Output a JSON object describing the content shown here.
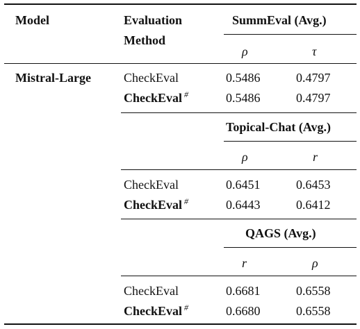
{
  "header": {
    "model": "Model",
    "method_line1": "Evaluation",
    "method_line2": "Method"
  },
  "model_name": "Mistral-Large",
  "sections": [
    {
      "dataset": "SummEval (Avg.)",
      "metric1": "ρ",
      "metric2": "τ",
      "rows": [
        {
          "method": "CheckEval",
          "mark": "",
          "v1": "0.5486",
          "v2": "0.4797"
        },
        {
          "method": "CheckEval",
          "mark": "#",
          "v1": "0.5486",
          "v2": "0.4797"
        }
      ]
    },
    {
      "dataset": "Topical-Chat (Avg.)",
      "metric1": "ρ",
      "metric2": "r",
      "rows": [
        {
          "method": "CheckEval",
          "mark": "",
          "v1": "0.6451",
          "v2": "0.6453"
        },
        {
          "method": "CheckEval",
          "mark": "#",
          "v1": "0.6443",
          "v2": "0.6412"
        }
      ]
    },
    {
      "dataset": "QAGS (Avg.)",
      "metric1": "r",
      "metric2": "ρ",
      "rows": [
        {
          "method": "CheckEval",
          "mark": "",
          "v1": "0.6681",
          "v2": "0.6558"
        },
        {
          "method": "CheckEval",
          "mark": "#",
          "v1": "0.6680",
          "v2": "0.6558"
        }
      ]
    }
  ]
}
